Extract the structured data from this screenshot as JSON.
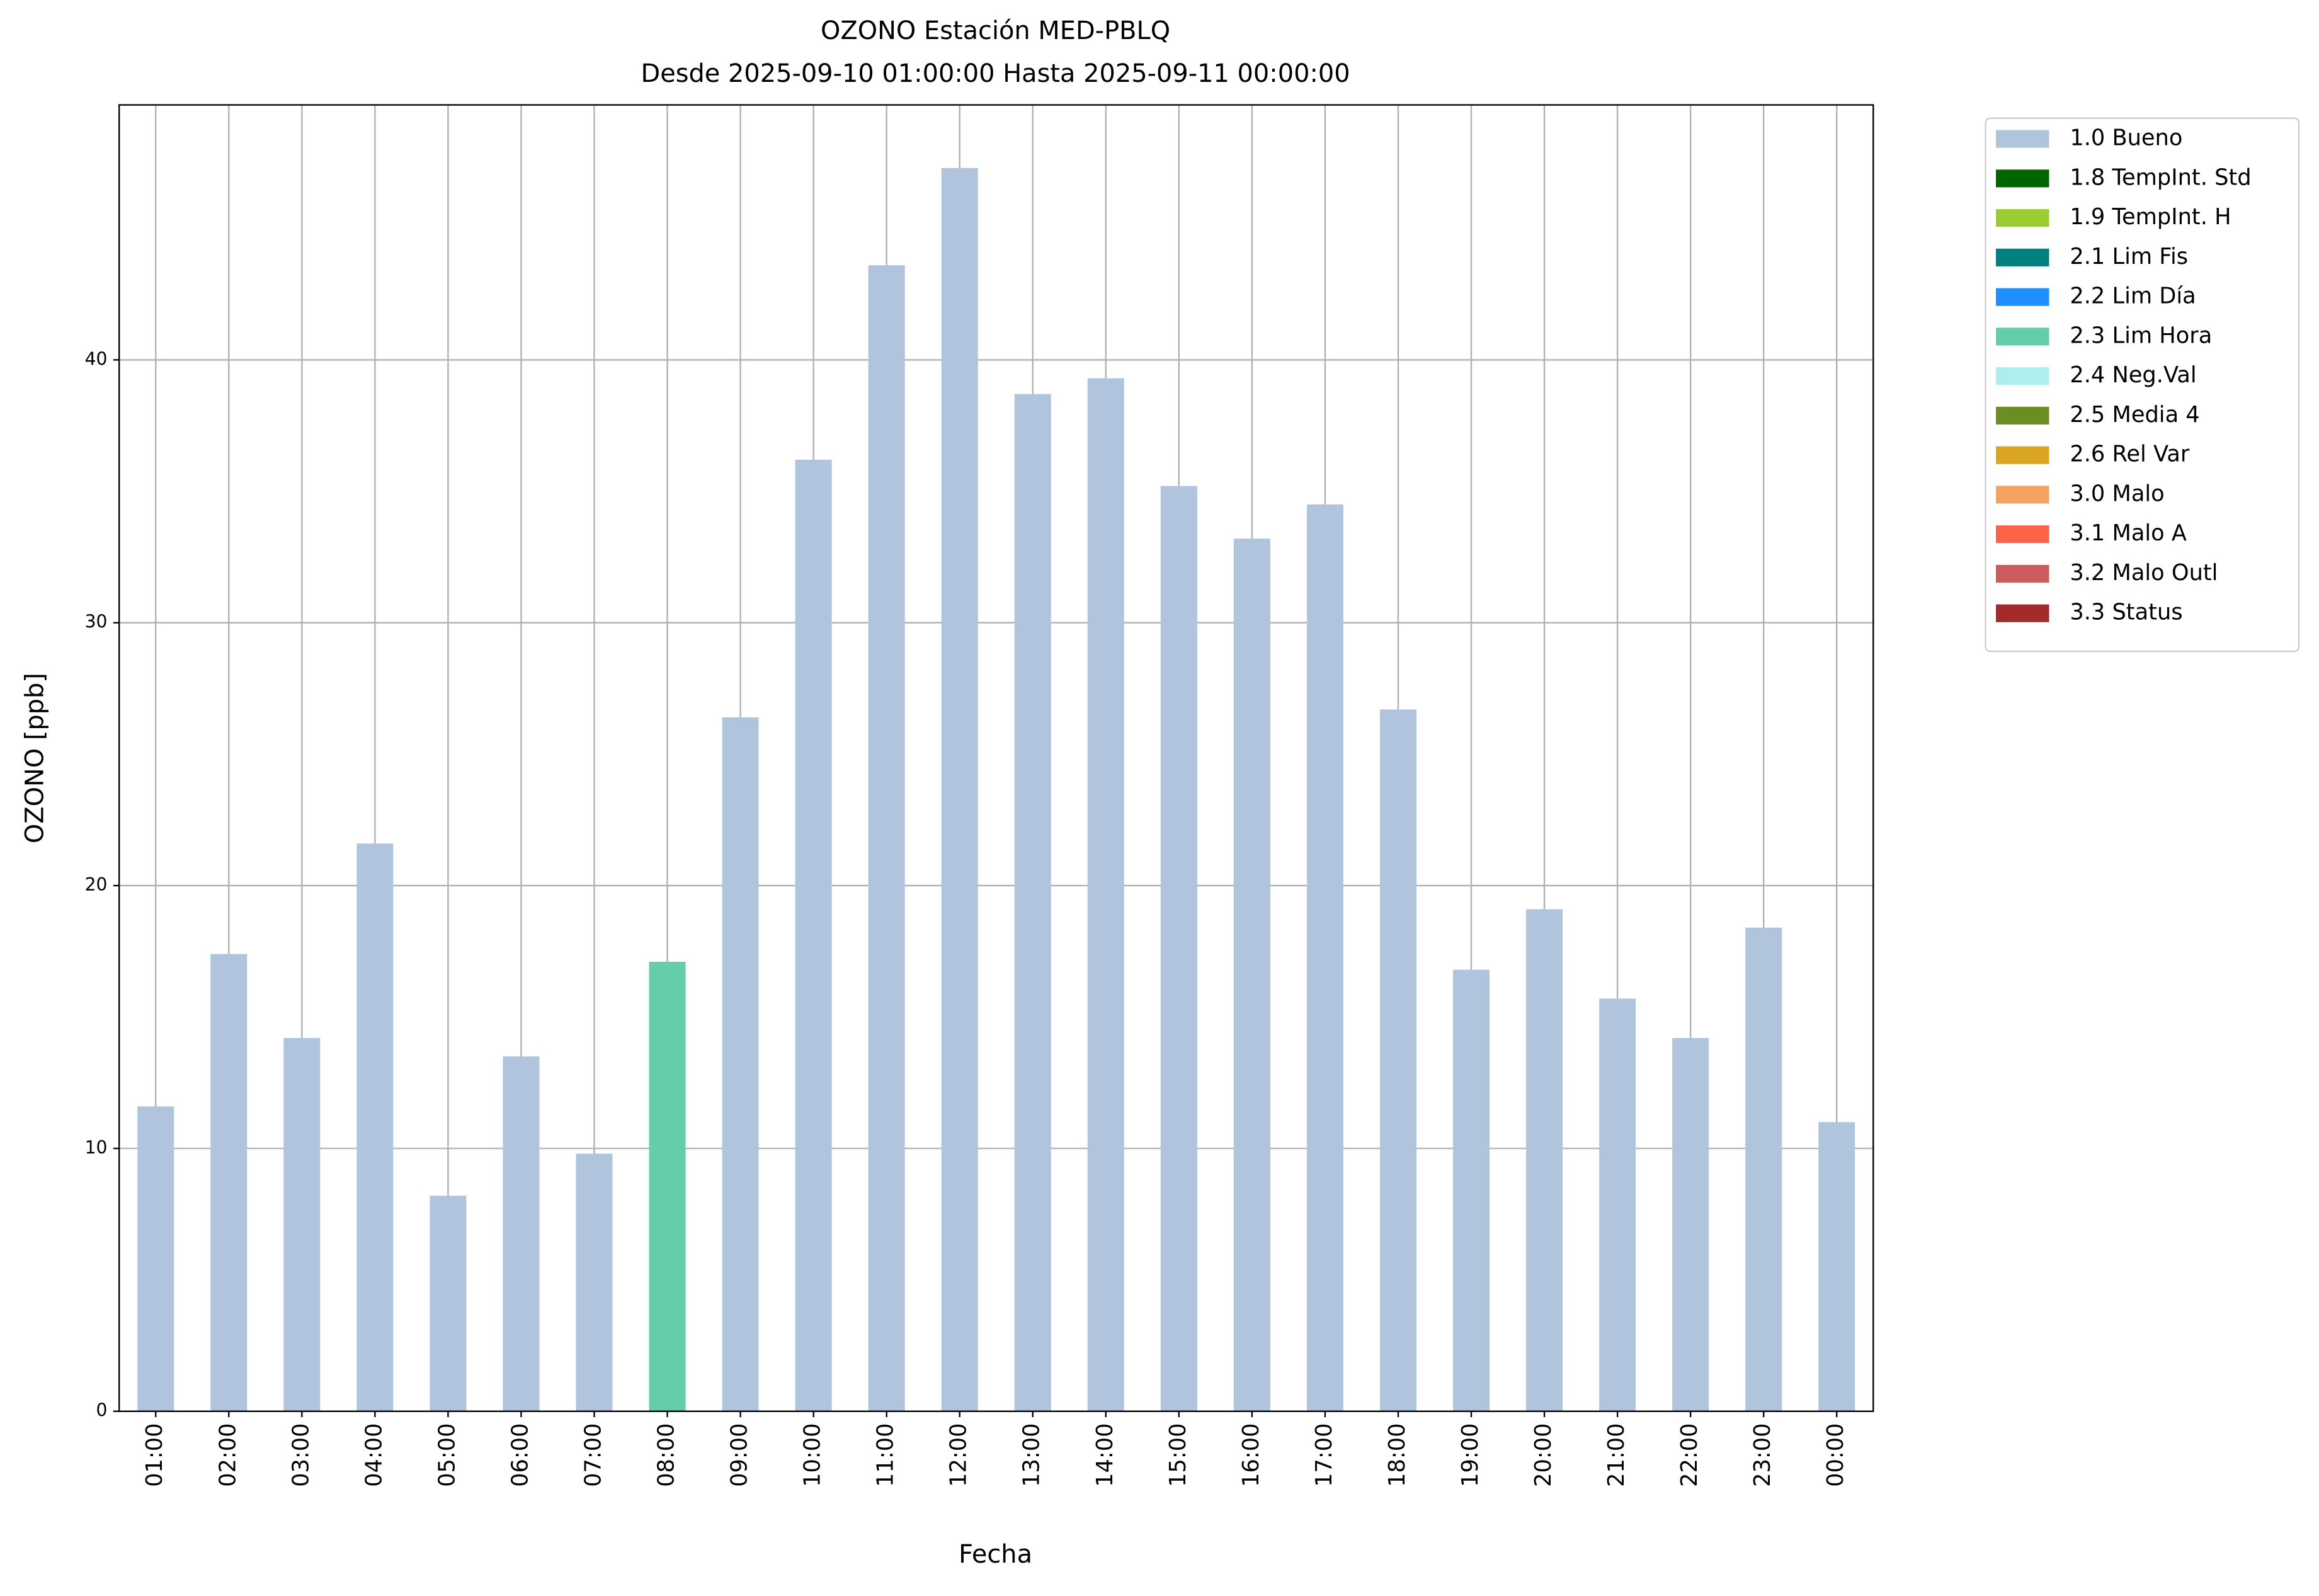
{
  "chart_data": {
    "type": "bar",
    "title": "OZONO Estación MED-PBLQ",
    "subtitle": "Desde 2025-09-10 01:00:00 Hasta 2025-09-11 00:00:00",
    "x_label": "Fecha",
    "y_label": "OZONO [ppb]",
    "categories": [
      "01:00",
      "02:00",
      "03:00",
      "04:00",
      "05:00",
      "06:00",
      "07:00",
      "08:00",
      "09:00",
      "10:00",
      "11:00",
      "12:00",
      "13:00",
      "14:00",
      "15:00",
      "16:00",
      "17:00",
      "18:00",
      "19:00",
      "20:00",
      "21:00",
      "22:00",
      "23:00",
      "00:00"
    ],
    "series": [
      {
        "name": "1.0 Bueno",
        "color": "#b0c4de",
        "values": [
          11.6,
          17.4,
          14.2,
          21.6,
          8.2,
          13.5,
          9.8,
          null,
          26.4,
          36.2,
          43.6,
          47.3,
          38.7,
          39.3,
          35.2,
          33.2,
          34.5,
          26.7,
          16.8,
          19.1,
          15.7,
          14.2,
          18.4,
          11.0
        ]
      },
      {
        "name": "1.8 TempInt. Std",
        "color": "#006400",
        "values": [
          null,
          null,
          null,
          null,
          null,
          null,
          null,
          null,
          null,
          null,
          null,
          null,
          null,
          null,
          null,
          null,
          null,
          null,
          null,
          null,
          null,
          null,
          null,
          null
        ]
      },
      {
        "name": "1.9 TempInt. H",
        "color": "#9acd32",
        "values": [
          null,
          null,
          null,
          null,
          null,
          null,
          null,
          null,
          null,
          null,
          null,
          null,
          null,
          null,
          null,
          null,
          null,
          null,
          null,
          null,
          null,
          null,
          null,
          null
        ]
      },
      {
        "name": "2.1 Lim Fis",
        "color": "#008080",
        "values": [
          null,
          null,
          null,
          null,
          null,
          null,
          null,
          null,
          null,
          null,
          null,
          null,
          null,
          null,
          null,
          null,
          null,
          null,
          null,
          null,
          null,
          null,
          null,
          null
        ]
      },
      {
        "name": "2.2 Lim Día",
        "color": "#1e90ff",
        "values": [
          null,
          null,
          null,
          null,
          null,
          null,
          null,
          null,
          null,
          null,
          null,
          null,
          null,
          null,
          null,
          null,
          null,
          null,
          null,
          null,
          null,
          null,
          null,
          null
        ]
      },
      {
        "name": "2.3 Lim Hora",
        "color": "#66cdaa",
        "values": [
          null,
          null,
          null,
          null,
          null,
          null,
          null,
          17.1,
          null,
          null,
          null,
          null,
          null,
          null,
          null,
          null,
          null,
          null,
          null,
          null,
          null,
          null,
          null,
          null
        ]
      },
      {
        "name": "2.4 Neg.Val",
        "color": "#afeeee",
        "values": [
          null,
          null,
          null,
          null,
          null,
          null,
          null,
          null,
          null,
          null,
          null,
          null,
          null,
          null,
          null,
          null,
          null,
          null,
          null,
          null,
          null,
          null,
          null,
          null
        ]
      },
      {
        "name": "2.5 Media 4",
        "color": "#6b8e23",
        "values": [
          null,
          null,
          null,
          null,
          null,
          null,
          null,
          null,
          null,
          null,
          null,
          null,
          null,
          null,
          null,
          null,
          null,
          null,
          null,
          null,
          null,
          null,
          null,
          null
        ]
      },
      {
        "name": "2.6 Rel Var",
        "color": "#daa520",
        "values": [
          null,
          null,
          null,
          null,
          null,
          null,
          null,
          null,
          null,
          null,
          null,
          null,
          null,
          null,
          null,
          null,
          null,
          null,
          null,
          null,
          null,
          null,
          null,
          null
        ]
      },
      {
        "name": "3.0 Malo",
        "color": "#f4a460",
        "values": [
          null,
          null,
          null,
          null,
          null,
          null,
          null,
          null,
          null,
          null,
          null,
          null,
          null,
          null,
          null,
          null,
          null,
          null,
          null,
          null,
          null,
          null,
          null,
          null
        ]
      },
      {
        "name": "3.1 Malo A",
        "color": "#ff6347",
        "values": [
          null,
          null,
          null,
          null,
          null,
          null,
          null,
          null,
          null,
          null,
          null,
          null,
          null,
          null,
          null,
          null,
          null,
          null,
          null,
          null,
          null,
          null,
          null,
          null
        ]
      },
      {
        "name": "3.2 Malo Outl",
        "color": "#cd5c5c",
        "values": [
          null,
          null,
          null,
          null,
          null,
          null,
          null,
          null,
          null,
          null,
          null,
          null,
          null,
          null,
          null,
          null,
          null,
          null,
          null,
          null,
          null,
          null,
          null,
          null
        ]
      },
      {
        "name": "3.3 Status",
        "color": "#a52a2a",
        "values": [
          null,
          null,
          null,
          null,
          null,
          null,
          null,
          null,
          null,
          null,
          null,
          null,
          null,
          null,
          null,
          null,
          null,
          null,
          null,
          null,
          null,
          null,
          null,
          null
        ]
      }
    ],
    "ylim": [
      0,
      49.7
    ],
    "yticks": [
      0,
      10,
      20,
      30,
      40
    ],
    "grid": true,
    "legend": "outside-right"
  }
}
